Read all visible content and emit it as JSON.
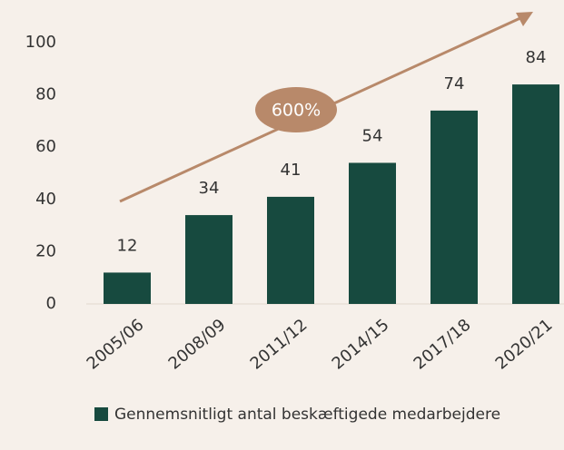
{
  "chart_data": {
    "type": "bar",
    "categories": [
      "2005/06",
      "2008/09",
      "2011/12",
      "2014/15",
      "2017/18",
      "2020/21"
    ],
    "series": [
      {
        "name": "Gennemsnitligt antal beskæftigede medarbejdere",
        "color": "#174a3f",
        "values": [
          12,
          34,
          41,
          54,
          74,
          84
        ]
      }
    ],
    "ylim": [
      0,
      100
    ],
    "yticks": [
      0,
      20,
      40,
      60,
      80,
      100
    ],
    "grid": false,
    "annotations": [
      {
        "text": "600%"
      }
    ]
  }
}
